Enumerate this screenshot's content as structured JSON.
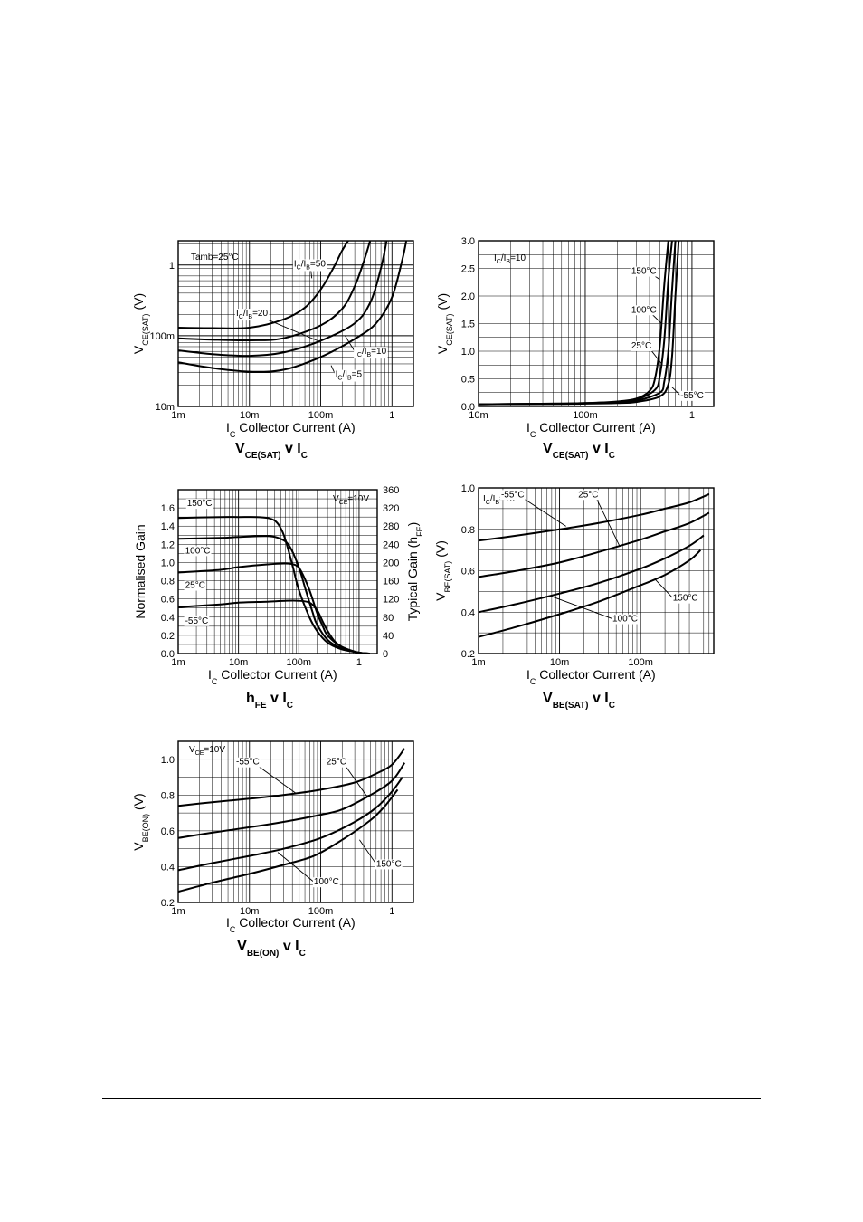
{
  "chart_data": [
    {
      "type": "line",
      "title": "V<sub>CE(SAT)</sub> v I<sub>C</sub>",
      "title_main": "V",
      "title_sub": "CE(SAT)",
      "title_mid": " v I",
      "title_sub2": "C",
      "xlabel": "Collector Current (A)",
      "xlabel_prefix": "I",
      "xlabel_sub": "C",
      "ylabel": "V",
      "ylabel_sub": "CE(SAT)",
      "ylabel_unit": "(V)",
      "xscale": "log",
      "yscale": "log",
      "xlim": [
        0.001,
        2
      ],
      "ylim": [
        0.01,
        2.2
      ],
      "xticks": [
        {
          "v": 0.001,
          "label": "1m"
        },
        {
          "v": 0.01,
          "label": "10m"
        },
        {
          "v": 0.1,
          "label": "100m"
        },
        {
          "v": 1,
          "label": "1"
        }
      ],
      "yticks": [
        {
          "v": 0.01,
          "label": "10m"
        },
        {
          "v": 0.1,
          "label": "100m"
        },
        {
          "v": 1,
          "label": "1"
        }
      ],
      "legend_text": "Tamb=25°C",
      "series": [
        {
          "name": "IC/IB=50",
          "x": [
            0.001,
            0.003,
            0.01,
            0.03,
            0.06,
            0.1,
            0.15,
            0.2,
            0.25
          ],
          "y": [
            0.13,
            0.128,
            0.13,
            0.17,
            0.25,
            0.45,
            0.9,
            1.6,
            2.3
          ]
        },
        {
          "name": "IC/IB=20",
          "x": [
            0.001,
            0.003,
            0.01,
            0.03,
            0.1,
            0.2,
            0.3,
            0.4,
            0.5
          ],
          "y": [
            0.092,
            0.088,
            0.086,
            0.092,
            0.14,
            0.24,
            0.5,
            1.1,
            2.3
          ]
        },
        {
          "name": "IC/IB=10",
          "x": [
            0.001,
            0.003,
            0.01,
            0.03,
            0.1,
            0.3,
            0.5,
            0.7,
            0.85
          ],
          "y": [
            0.062,
            0.055,
            0.052,
            0.058,
            0.085,
            0.15,
            0.3,
            0.9,
            2.3
          ]
        },
        {
          "name": "IC/IB=5",
          "x": [
            0.001,
            0.003,
            0.01,
            0.03,
            0.1,
            0.3,
            0.6,
            1.0,
            1.4,
            1.6
          ],
          "y": [
            0.042,
            0.035,
            0.031,
            0.033,
            0.05,
            0.09,
            0.15,
            0.35,
            1.2,
            2.3
          ]
        }
      ],
      "annotations": [
        {
          "prefix": "I",
          "s1": "C",
          "mid": "/I",
          "s2": "B",
          "suffix": "=50",
          "tx": 0.042,
          "ty": 0.95,
          "ax": 0.075,
          "ay": 0.65
        },
        {
          "prefix": "I",
          "s1": "C",
          "mid": "/I",
          "s2": "B",
          "suffix": "=20",
          "tx": 0.0065,
          "ty": 0.19,
          "ax": 0.09,
          "ay": 0.085
        },
        {
          "prefix": "I",
          "s1": "C",
          "mid": "/I",
          "s2": "B",
          "suffix": "=10",
          "tx": 0.3,
          "ty": 0.055,
          "ax": 0.22,
          "ay": 0.1
        },
        {
          "prefix": "I",
          "s1": "C",
          "mid": "/I",
          "s2": "B",
          "suffix": "=5",
          "tx": 0.16,
          "ty": 0.026,
          "ax": 0.14,
          "ay": 0.038
        }
      ]
    },
    {
      "type": "line",
      "title_main": "V",
      "title_sub": "CE(SAT)",
      "title_mid": " v I",
      "title_sub2": "C",
      "xlabel": "Collector Current (A)",
      "xlabel_prefix": "I",
      "xlabel_sub": "C",
      "ylabel": "V",
      "ylabel_sub": "CE(SAT)",
      "ylabel_unit": "(V)",
      "xscale": "log",
      "yscale": "linear",
      "xlim": [
        0.01,
        1.6
      ],
      "ylim": [
        0,
        3.0
      ],
      "xticks": [
        {
          "v": 0.01,
          "label": "10m"
        },
        {
          "v": 0.1,
          "label": "100m"
        },
        {
          "v": 1,
          "label": "1"
        }
      ],
      "yticks": [
        {
          "v": 0,
          "label": "0.0"
        },
        {
          "v": 0.5,
          "label": "0.5"
        },
        {
          "v": 1.0,
          "label": "1.0"
        },
        {
          "v": 1.5,
          "label": "1.5"
        },
        {
          "v": 2.0,
          "label": "2.0"
        },
        {
          "v": 2.5,
          "label": "2.5"
        },
        {
          "v": 3.0,
          "label": "3.0"
        }
      ],
      "legend_prefix": "I",
      "legend_s1": "C",
      "legend_mid": "/I",
      "legend_s2": "B",
      "legend_suffix": "=10",
      "series": [
        {
          "name": "150°C",
          "x": [
            0.01,
            0.05,
            0.1,
            0.2,
            0.3,
            0.4,
            0.45,
            0.5,
            0.55,
            0.6
          ],
          "y": [
            0.04,
            0.05,
            0.06,
            0.09,
            0.14,
            0.28,
            0.5,
            1.1,
            2.2,
            3.0
          ]
        },
        {
          "name": "100°C",
          "x": [
            0.01,
            0.05,
            0.1,
            0.2,
            0.3,
            0.45,
            0.5,
            0.55,
            0.6,
            0.65
          ],
          "y": [
            0.04,
            0.05,
            0.06,
            0.08,
            0.12,
            0.3,
            0.55,
            1.2,
            2.3,
            3.0
          ]
        },
        {
          "name": "25°C",
          "x": [
            0.01,
            0.05,
            0.1,
            0.2,
            0.3,
            0.5,
            0.55,
            0.6,
            0.65,
            0.7
          ],
          "y": [
            0.04,
            0.045,
            0.055,
            0.07,
            0.1,
            0.25,
            0.45,
            1.0,
            2.1,
            3.0
          ]
        },
        {
          "name": "-55°C",
          "x": [
            0.01,
            0.05,
            0.1,
            0.2,
            0.3,
            0.5,
            0.6,
            0.65,
            0.7,
            0.75
          ],
          "y": [
            0.04,
            0.045,
            0.05,
            0.06,
            0.08,
            0.18,
            0.4,
            0.9,
            2.0,
            3.0
          ]
        }
      ],
      "annotations": [
        {
          "text": "150°C",
          "tx": 0.27,
          "ty": 2.4,
          "ax": 0.5,
          "ay": 2.3
        },
        {
          "text": "100°C",
          "tx": 0.27,
          "ty": 1.7,
          "ax": 0.52,
          "ay": 1.5
        },
        {
          "text": "25°C",
          "tx": 0.27,
          "ty": 1.05,
          "ax": 0.53,
          "ay": 0.75
        },
        {
          "text": "-55°C",
          "tx": 0.78,
          "ty": 0.15,
          "ax": 0.65,
          "ay": 0.35
        }
      ]
    },
    {
      "type": "line",
      "title_main": "h",
      "title_sub": "FE",
      "title_mid": " v I",
      "title_sub2": "C",
      "xlabel": "Collector Current (A)",
      "xlabel_prefix": "I",
      "xlabel_sub": "C",
      "ylabel": "Normalised Gain",
      "y2label": "Typical Gain (h",
      "y2label_sub": "FE",
      "y2label_close": ")",
      "xscale": "log",
      "yscale": "linear",
      "xlim": [
        0.001,
        2
      ],
      "ylim": [
        0,
        1.8
      ],
      "xticks": [
        {
          "v": 0.001,
          "label": "1m"
        },
        {
          "v": 0.01,
          "label": "10m"
        },
        {
          "v": 0.1,
          "label": "100m"
        },
        {
          "v": 1,
          "label": "1"
        }
      ],
      "yticks": [
        {
          "v": 0,
          "label": "0.0"
        },
        {
          "v": 0.2,
          "label": "0.2"
        },
        {
          "v": 0.4,
          "label": "0.4"
        },
        {
          "v": 0.6,
          "label": "0.6"
        },
        {
          "v": 0.8,
          "label": "0.8"
        },
        {
          "v": 1.0,
          "label": "1.0"
        },
        {
          "v": 1.2,
          "label": "1.2"
        },
        {
          "v": 1.4,
          "label": "1.4"
        },
        {
          "v": 1.6,
          "label": "1.6"
        }
      ],
      "y2ticks": [
        {
          "v": 0,
          "label": "0"
        },
        {
          "v": 0.2,
          "label": "40"
        },
        {
          "v": 0.4,
          "label": "80"
        },
        {
          "v": 0.6,
          "label": "120"
        },
        {
          "v": 0.8,
          "label": "160"
        },
        {
          "v": 1.0,
          "label": "200"
        },
        {
          "v": 1.2,
          "label": "240"
        },
        {
          "v": 1.4,
          "label": "280"
        },
        {
          "v": 1.6,
          "label": "320"
        },
        {
          "v": 1.8,
          "label": "360"
        }
      ],
      "legend_prefix": "V",
      "legend_s1": "CE",
      "legend_suffix": "=10V",
      "series": [
        {
          "name": "150°C",
          "x": [
            0.001,
            0.005,
            0.01,
            0.02,
            0.03,
            0.04,
            0.05,
            0.06,
            0.08,
            0.1,
            0.15,
            0.2,
            0.3,
            0.5,
            1.0,
            1.5
          ],
          "y": [
            1.49,
            1.5,
            1.5,
            1.5,
            1.49,
            1.46,
            1.38,
            1.25,
            0.95,
            0.7,
            0.4,
            0.25,
            0.12,
            0.05,
            0.01,
            0.0
          ]
        },
        {
          "name": "100°C",
          "x": [
            0.001,
            0.005,
            0.01,
            0.03,
            0.05,
            0.07,
            0.1,
            0.13,
            0.17,
            0.2,
            0.3,
            0.5,
            1.0,
            1.5
          ],
          "y": [
            1.26,
            1.27,
            1.28,
            1.29,
            1.26,
            1.18,
            0.95,
            0.7,
            0.45,
            0.32,
            0.15,
            0.06,
            0.01,
            0.0
          ]
        },
        {
          "name": "25°C",
          "x": [
            0.001,
            0.005,
            0.01,
            0.03,
            0.06,
            0.09,
            0.11,
            0.15,
            0.2,
            0.25,
            0.3,
            0.5,
            1.0,
            1.5
          ],
          "y": [
            0.89,
            0.92,
            0.95,
            0.98,
            0.99,
            0.97,
            0.9,
            0.7,
            0.45,
            0.3,
            0.2,
            0.08,
            0.01,
            0.0
          ]
        },
        {
          "name": "-55°C",
          "x": [
            0.001,
            0.005,
            0.01,
            0.03,
            0.06,
            0.1,
            0.15,
            0.2,
            0.25,
            0.3,
            0.4,
            0.6,
            1.0,
            1.5
          ],
          "y": [
            0.51,
            0.54,
            0.56,
            0.57,
            0.58,
            0.58,
            0.56,
            0.48,
            0.35,
            0.25,
            0.13,
            0.05,
            0.01,
            0.0
          ]
        }
      ],
      "annotations": [
        {
          "text": "150°C",
          "tx": 0.0014,
          "ty": 1.62
        },
        {
          "text": "100°C",
          "tx": 0.0013,
          "ty": 1.1
        },
        {
          "text": "25°C",
          "tx": 0.0013,
          "ty": 0.72
        },
        {
          "text": "-55°C",
          "tx": 0.0013,
          "ty": 0.33
        }
      ]
    },
    {
      "type": "line",
      "title_main": "V",
      "title_sub": "BE(SAT)",
      "title_mid": " v I",
      "title_sub2": "C",
      "xlabel": "Collector Current (A)",
      "xlabel_prefix": "I",
      "xlabel_sub": "C",
      "ylabel": "V",
      "ylabel_sub": "BE(SAT)",
      "ylabel_unit": "(V)",
      "xscale": "log",
      "yscale": "linear",
      "xlim": [
        0.001,
        0.8
      ],
      "ylim": [
        0.2,
        1.0
      ],
      "xticks": [
        {
          "v": 0.001,
          "label": "1m"
        },
        {
          "v": 0.01,
          "label": "10m"
        },
        {
          "v": 0.1,
          "label": "100m"
        }
      ],
      "yticks": [
        {
          "v": 0.2,
          "label": "0.2"
        },
        {
          "v": 0.4,
          "label": "0.4"
        },
        {
          "v": 0.6,
          "label": "0.6"
        },
        {
          "v": 0.8,
          "label": "0.8"
        },
        {
          "v": 1.0,
          "label": "1.0"
        }
      ],
      "legend_prefix": "I",
      "legend_s1": "C",
      "legend_mid": "/I",
      "legend_s2": "B",
      "legend_suffix": "=10",
      "series": [
        {
          "name": "-55°C",
          "x": [
            0.001,
            0.003,
            0.01,
            0.03,
            0.1,
            0.2,
            0.4,
            0.7
          ],
          "y": [
            0.745,
            0.77,
            0.8,
            0.83,
            0.87,
            0.9,
            0.93,
            0.97
          ]
        },
        {
          "name": "25°C",
          "x": [
            0.001,
            0.003,
            0.01,
            0.03,
            0.1,
            0.2,
            0.4,
            0.7
          ],
          "y": [
            0.57,
            0.6,
            0.64,
            0.69,
            0.75,
            0.79,
            0.83,
            0.88
          ]
        },
        {
          "name": "100°C",
          "x": [
            0.001,
            0.003,
            0.01,
            0.03,
            0.1,
            0.2,
            0.4,
            0.6
          ],
          "y": [
            0.4,
            0.44,
            0.49,
            0.54,
            0.61,
            0.66,
            0.72,
            0.77
          ]
        },
        {
          "name": "150°C",
          "x": [
            0.001,
            0.003,
            0.01,
            0.03,
            0.1,
            0.2,
            0.4,
            0.55
          ],
          "y": [
            0.28,
            0.33,
            0.39,
            0.45,
            0.53,
            0.58,
            0.65,
            0.7
          ]
        }
      ],
      "annotations": [
        {
          "text": "-55°C",
          "tx": 0.0019,
          "ty": 0.955,
          "ax": 0.012,
          "ay": 0.815
        },
        {
          "text": "25°C",
          "tx": 0.017,
          "ty": 0.955,
          "ax": 0.055,
          "ay": 0.72
        },
        {
          "text": "150°C",
          "tx": 0.25,
          "ty": 0.455,
          "ax": 0.15,
          "ay": 0.56
        },
        {
          "text": "100°C",
          "tx": 0.045,
          "ty": 0.355,
          "ax": 0.0075,
          "ay": 0.48
        }
      ]
    },
    {
      "type": "line",
      "title_main": "V",
      "title_sub": "BE(ON)",
      "title_mid": " v I",
      "title_sub2": "C",
      "xlabel": "Collector Current (A)",
      "xlabel_prefix": "I",
      "xlabel_sub": "C",
      "ylabel": "V",
      "ylabel_sub": "BE(ON)",
      "ylabel_unit": "(V)",
      "xscale": "log",
      "yscale": "linear",
      "xlim": [
        0.001,
        2
      ],
      "ylim": [
        0.2,
        1.1
      ],
      "xticks": [
        {
          "v": 0.001,
          "label": "1m"
        },
        {
          "v": 0.01,
          "label": "10m"
        },
        {
          "v": 0.1,
          "label": "100m"
        },
        {
          "v": 1,
          "label": "1"
        }
      ],
      "yticks": [
        {
          "v": 0.2,
          "label": "0.2"
        },
        {
          "v": 0.4,
          "label": "0.4"
        },
        {
          "v": 0.6,
          "label": "0.6"
        },
        {
          "v": 0.8,
          "label": "0.8"
        },
        {
          "v": 1.0,
          "label": "1.0"
        }
      ],
      "legend_prefix": "V",
      "legend_s1": "CE",
      "legend_suffix": "=10V",
      "series": [
        {
          "name": "-55°C",
          "x": [
            0.001,
            0.003,
            0.01,
            0.03,
            0.1,
            0.3,
            0.6,
            1.0,
            1.5
          ],
          "y": [
            0.74,
            0.76,
            0.78,
            0.8,
            0.83,
            0.87,
            0.92,
            0.97,
            1.06
          ]
        },
        {
          "name": "25°C",
          "x": [
            0.001,
            0.003,
            0.01,
            0.03,
            0.1,
            0.2,
            0.5,
            1.0,
            1.5
          ],
          "y": [
            0.56,
            0.59,
            0.62,
            0.65,
            0.69,
            0.72,
            0.8,
            0.88,
            0.98
          ]
        },
        {
          "name": "100°C",
          "x": [
            0.001,
            0.003,
            0.01,
            0.03,
            0.1,
            0.3,
            0.6,
            1.0,
            1.4
          ],
          "y": [
            0.38,
            0.42,
            0.46,
            0.5,
            0.56,
            0.65,
            0.73,
            0.82,
            0.9
          ]
        },
        {
          "name": "150°C",
          "x": [
            0.001,
            0.003,
            0.01,
            0.03,
            0.08,
            0.2,
            0.5,
            0.8,
            1.2
          ],
          "y": [
            0.26,
            0.31,
            0.36,
            0.41,
            0.46,
            0.55,
            0.66,
            0.74,
            0.83
          ]
        }
      ],
      "annotations": [
        {
          "text": "-55°C",
          "tx": 0.0065,
          "ty": 0.97,
          "ax": 0.045,
          "ay": 0.81
        },
        {
          "text": "25°C",
          "tx": 0.12,
          "ty": 0.97,
          "ax": 0.45,
          "ay": 0.79
        },
        {
          "text": "150°C",
          "tx": 0.6,
          "ty": 0.4,
          "ax": 0.35,
          "ay": 0.55
        },
        {
          "text": "100°C",
          "tx": 0.08,
          "ty": 0.3,
          "ax": 0.025,
          "ay": 0.48
        }
      ]
    }
  ]
}
